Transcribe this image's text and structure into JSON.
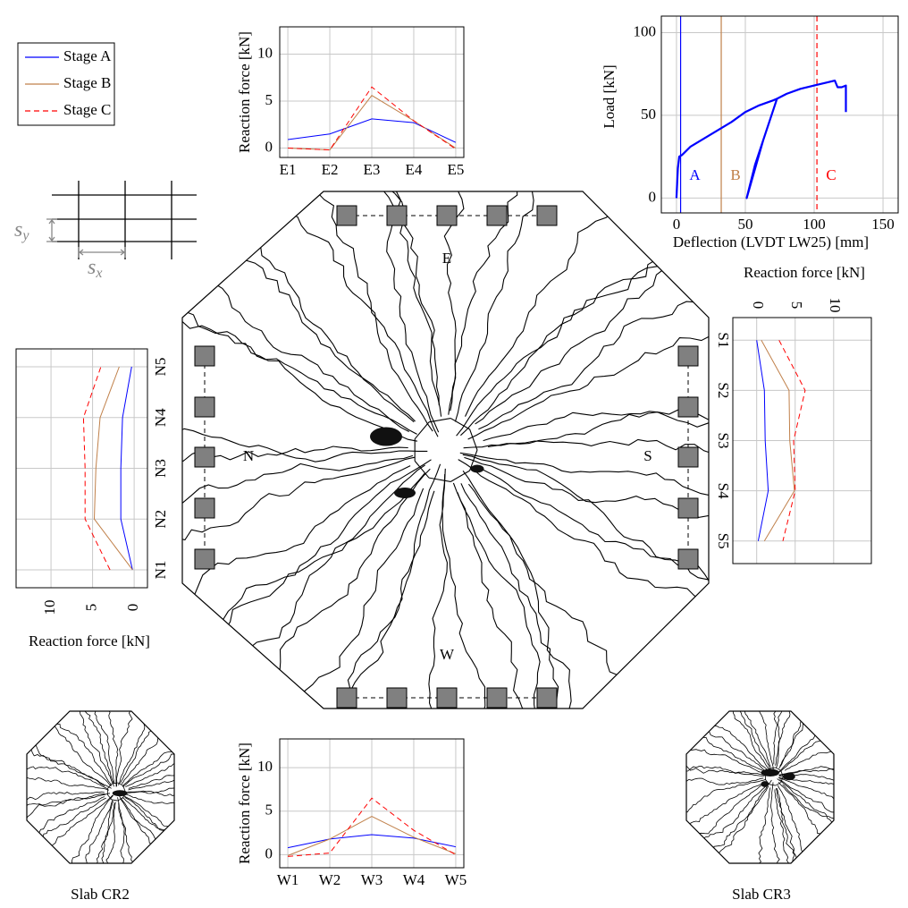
{
  "legend": [
    {
      "name": "Stage A",
      "color": "#0000ff",
      "dash": "solid"
    },
    {
      "name": "Stage B",
      "color": "#c0804a",
      "dash": "solid"
    },
    {
      "name": "Stage C",
      "color": "#ff0000",
      "dash": "dashed"
    }
  ],
  "chart_data": [
    {
      "type": "line",
      "orientation": "vertical",
      "ylabel": "Reaction force [kN]",
      "categories": [
        "E1",
        "E2",
        "E3",
        "E4",
        "E5"
      ],
      "series": [
        {
          "values": [
            0.9,
            1.5,
            3.1,
            2.7,
            0.6
          ]
        },
        {
          "values": [
            0,
            -0.2,
            5.6,
            2.9,
            0
          ]
        },
        {
          "values": [
            0,
            -0.2,
            6.5,
            2.9,
            -0.1
          ]
        }
      ],
      "ylim": [
        -1,
        12.9
      ],
      "yticks": [
        0,
        5,
        10
      ],
      "grid": true
    },
    {
      "type": "line",
      "orientation": "vertical",
      "ylabel": "Reaction force [kN]",
      "categories": [
        "W1",
        "W2",
        "W3",
        "W4",
        "W5"
      ],
      "series": [
        {
          "values": [
            0.8,
            1.8,
            2.3,
            1.9,
            0.9
          ]
        },
        {
          "values": [
            -0.1,
            1.8,
            4.4,
            2.0,
            0.1
          ]
        },
        {
          "values": [
            -0.2,
            0.2,
            6.5,
            2.8,
            0.0
          ]
        }
      ],
      "ylim": [
        -1.5,
        13.3
      ],
      "yticks": [
        0,
        5,
        10
      ],
      "grid": true
    },
    {
      "type": "line",
      "orientation": "horizontal",
      "category_order": "bottom-to-top",
      "value_axis": "bottom",
      "value_axis_reversed": true,
      "xlabel": "Reaction force [kN]",
      "categories": [
        "N1",
        "N2",
        "N3",
        "N4",
        "N5"
      ],
      "series": [
        {
          "values": [
            0.2,
            1.6,
            1.6,
            1.4,
            0.3
          ]
        },
        {
          "values": [
            0.2,
            4.8,
            4.6,
            4.1,
            1.8
          ]
        },
        {
          "values": [
            2.9,
            5.9,
            5.9,
            6.1,
            4.0
          ]
        }
      ],
      "xlim": [
        -1.6,
        14.2
      ],
      "xticks": [
        0,
        5,
        10
      ],
      "grid": true
    },
    {
      "type": "line",
      "orientation": "horizontal",
      "category_order": "top-to-bottom",
      "value_axis": "top",
      "value_axis_reversed": false,
      "xlabel": "Reaction force [kN]",
      "categories": [
        "S1",
        "S2",
        "S3",
        "S4",
        "S5"
      ],
      "series": [
        {
          "values": [
            0,
            1.0,
            1.1,
            1.5,
            0.2
          ]
        },
        {
          "values": [
            0.6,
            4.2,
            4.3,
            4.9,
            1.0
          ]
        },
        {
          "values": [
            2.9,
            6.3,
            4.8,
            5.0,
            3.4
          ]
        }
      ],
      "xlim": [
        -3.1,
        14.9
      ],
      "xticks": [
        0,
        5,
        10
      ],
      "grid": true
    },
    {
      "type": "xy",
      "xlabel": "Deflection (LVDT LW25) [mm]",
      "ylabel": "Load [kN]",
      "xlim": [
        -11,
        161
      ],
      "ylim": [
        -9,
        110
      ],
      "xticks": [
        0,
        50,
        100,
        150
      ],
      "yticks": [
        0,
        50,
        100
      ],
      "grid": true,
      "series": [
        {
          "color": "#0000ff",
          "x": [
            0,
            1,
            2,
            4,
            10,
            20,
            30,
            40,
            50,
            60,
            70,
            73,
            63,
            51,
            57,
            65,
            73,
            80,
            90,
            100,
            110,
            115,
            117,
            120,
            123,
            123
          ],
          "y": [
            0,
            18,
            25,
            26,
            31,
            36,
            41,
            46,
            52,
            56,
            59,
            60,
            35,
            0,
            20,
            40,
            60,
            63,
            66,
            68,
            70,
            71,
            67,
            67,
            68,
            52
          ]
        }
      ],
      "markers": [
        {
          "label": "A",
          "x": 3,
          "color": "#0000ff",
          "dash": "solid"
        },
        {
          "label": "B",
          "x": 32.5,
          "color": "#c0804a",
          "dash": "solid"
        },
        {
          "label": "C",
          "x": 102,
          "color": "#ff0000",
          "dash": "dashed"
        }
      ]
    }
  ],
  "sides": [
    "E",
    "N",
    "S",
    "W"
  ],
  "spacing": {
    "sy": {
      "base": "s",
      "sub": "y"
    },
    "sx": {
      "base": "s",
      "sub": "x"
    }
  },
  "slabs": [
    "Slab CR2",
    "Slab CR3"
  ]
}
